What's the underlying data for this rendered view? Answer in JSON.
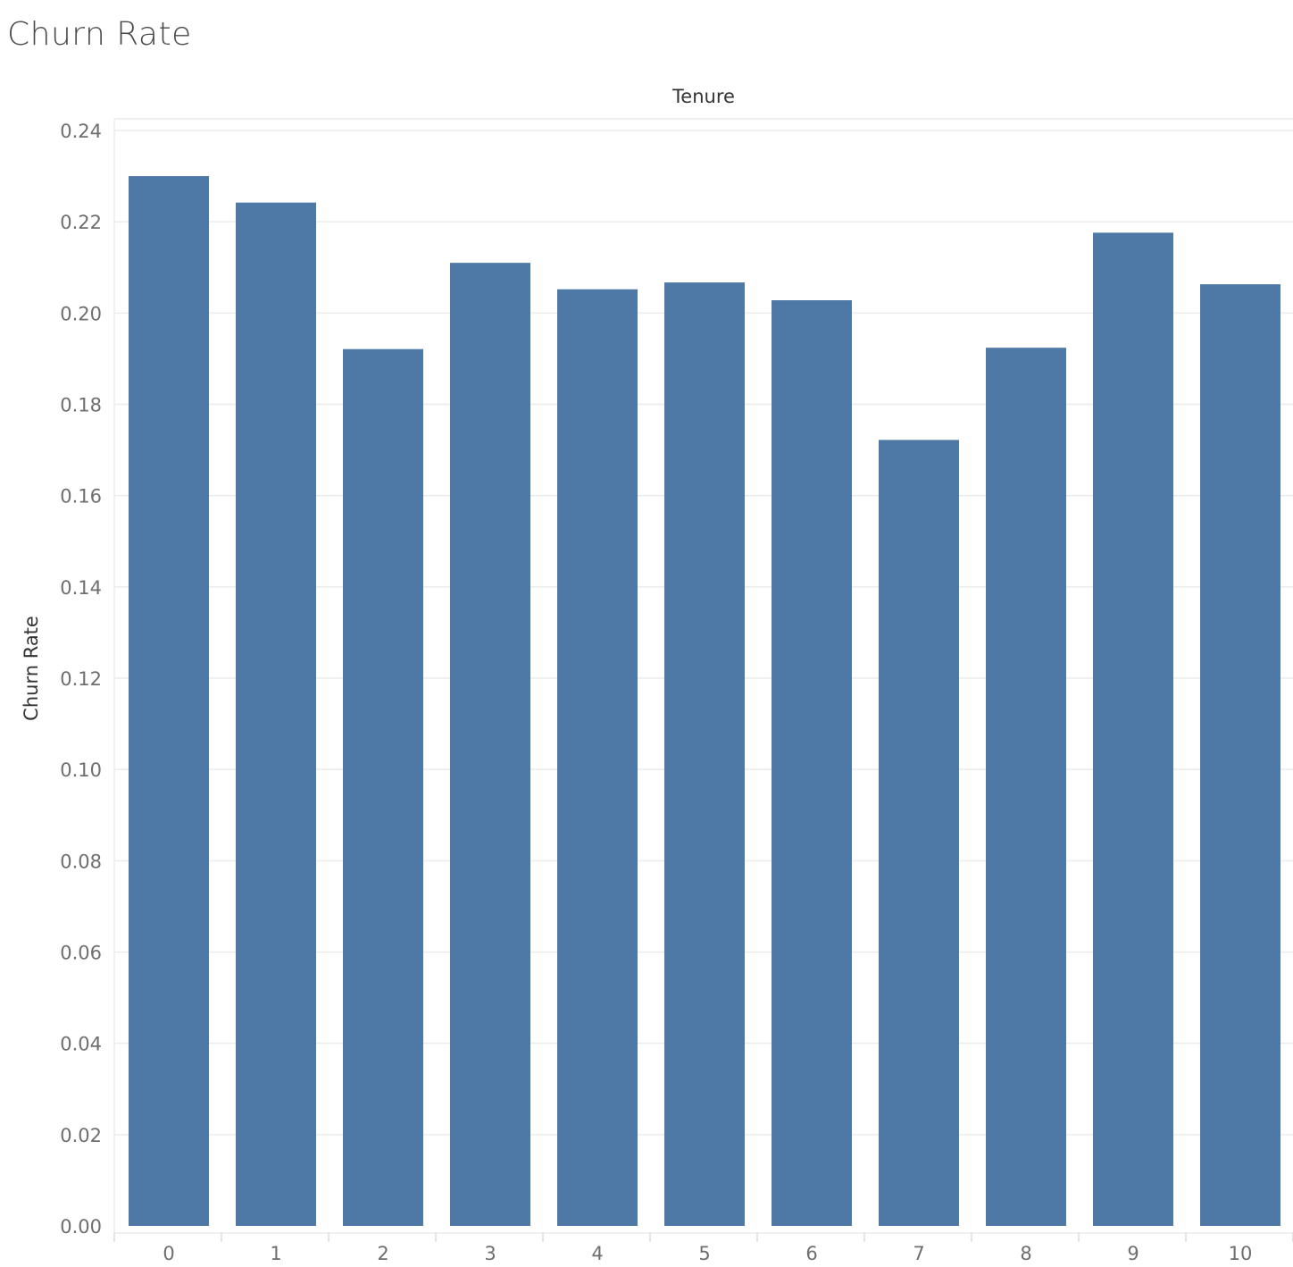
{
  "chart_data": {
    "type": "bar",
    "title": "Churn Rate",
    "xlabel": "Tenure",
    "ylabel": "Churn Rate",
    "categories": [
      "0",
      "1",
      "2",
      "3",
      "4",
      "5",
      "6",
      "7",
      "8",
      "9",
      "10"
    ],
    "values": [
      0.23,
      0.2242,
      0.1921,
      0.211,
      0.2052,
      0.2067,
      0.2028,
      0.1722,
      0.1924,
      0.2176,
      0.2063
    ],
    "ylim": [
      0,
      0.24
    ],
    "yticks": [
      "0.00",
      "0.02",
      "0.04",
      "0.06",
      "0.08",
      "0.10",
      "0.12",
      "0.14",
      "0.16",
      "0.18",
      "0.20",
      "0.22",
      "0.24"
    ],
    "grid": true,
    "bar_color": "#4e79a7",
    "gridline_color": "#ececec",
    "x_axis_position": "top-title"
  }
}
